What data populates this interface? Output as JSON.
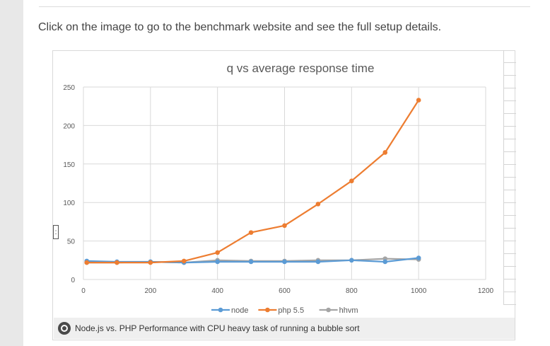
{
  "page": {
    "intro_text": "Click on the image to go to the benchmark website and see the full setup details.",
    "caption": "Node.js vs. PHP Performance with CPU heavy task of running a bubble sort"
  },
  "colors": {
    "node": "#5b9bd5",
    "php": "#ed7d31",
    "hhvm": "#a5a5a5"
  },
  "chart_data": {
    "type": "line",
    "title": "q vs average response time",
    "xlabel": "",
    "ylabel": "",
    "xlim": [
      0,
      1200
    ],
    "ylim": [
      0,
      250
    ],
    "x_ticks": [
      0,
      200,
      400,
      600,
      800,
      1000,
      1200
    ],
    "y_ticks": [
      0,
      50,
      100,
      150,
      200,
      250
    ],
    "grid": true,
    "legend_position": "bottom",
    "x": [
      10,
      100,
      200,
      300,
      400,
      500,
      600,
      700,
      800,
      900,
      1000
    ],
    "series": [
      {
        "name": "node",
        "color": "#5b9bd5",
        "values": [
          24,
          23,
          23,
          22,
          23,
          23,
          23,
          23,
          25,
          23,
          28
        ]
      },
      {
        "name": "php 5.5",
        "color": "#ed7d31",
        "values": [
          22,
          22,
          22,
          24,
          35,
          61,
          70,
          98,
          128,
          165,
          233
        ]
      },
      {
        "name": "hhvm",
        "color": "#a5a5a5",
        "values": [
          22,
          22,
          23,
          22,
          25,
          24,
          24,
          25,
          25,
          27,
          26
        ]
      }
    ]
  }
}
